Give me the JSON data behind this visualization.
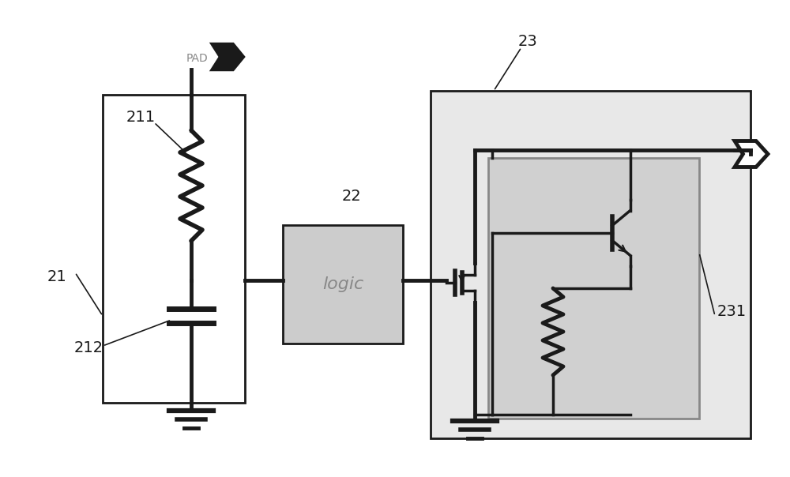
{
  "bg_color": "#ffffff",
  "line_color": "#1a1a1a",
  "box_fill_light": "#cccccc",
  "box23_fill": "#e8e8e8",
  "box231_fill": "#d0d0d0",
  "box21_fill": "#ffffff",
  "fig_width": 10.0,
  "fig_height": 6.04,
  "dpi": 100
}
